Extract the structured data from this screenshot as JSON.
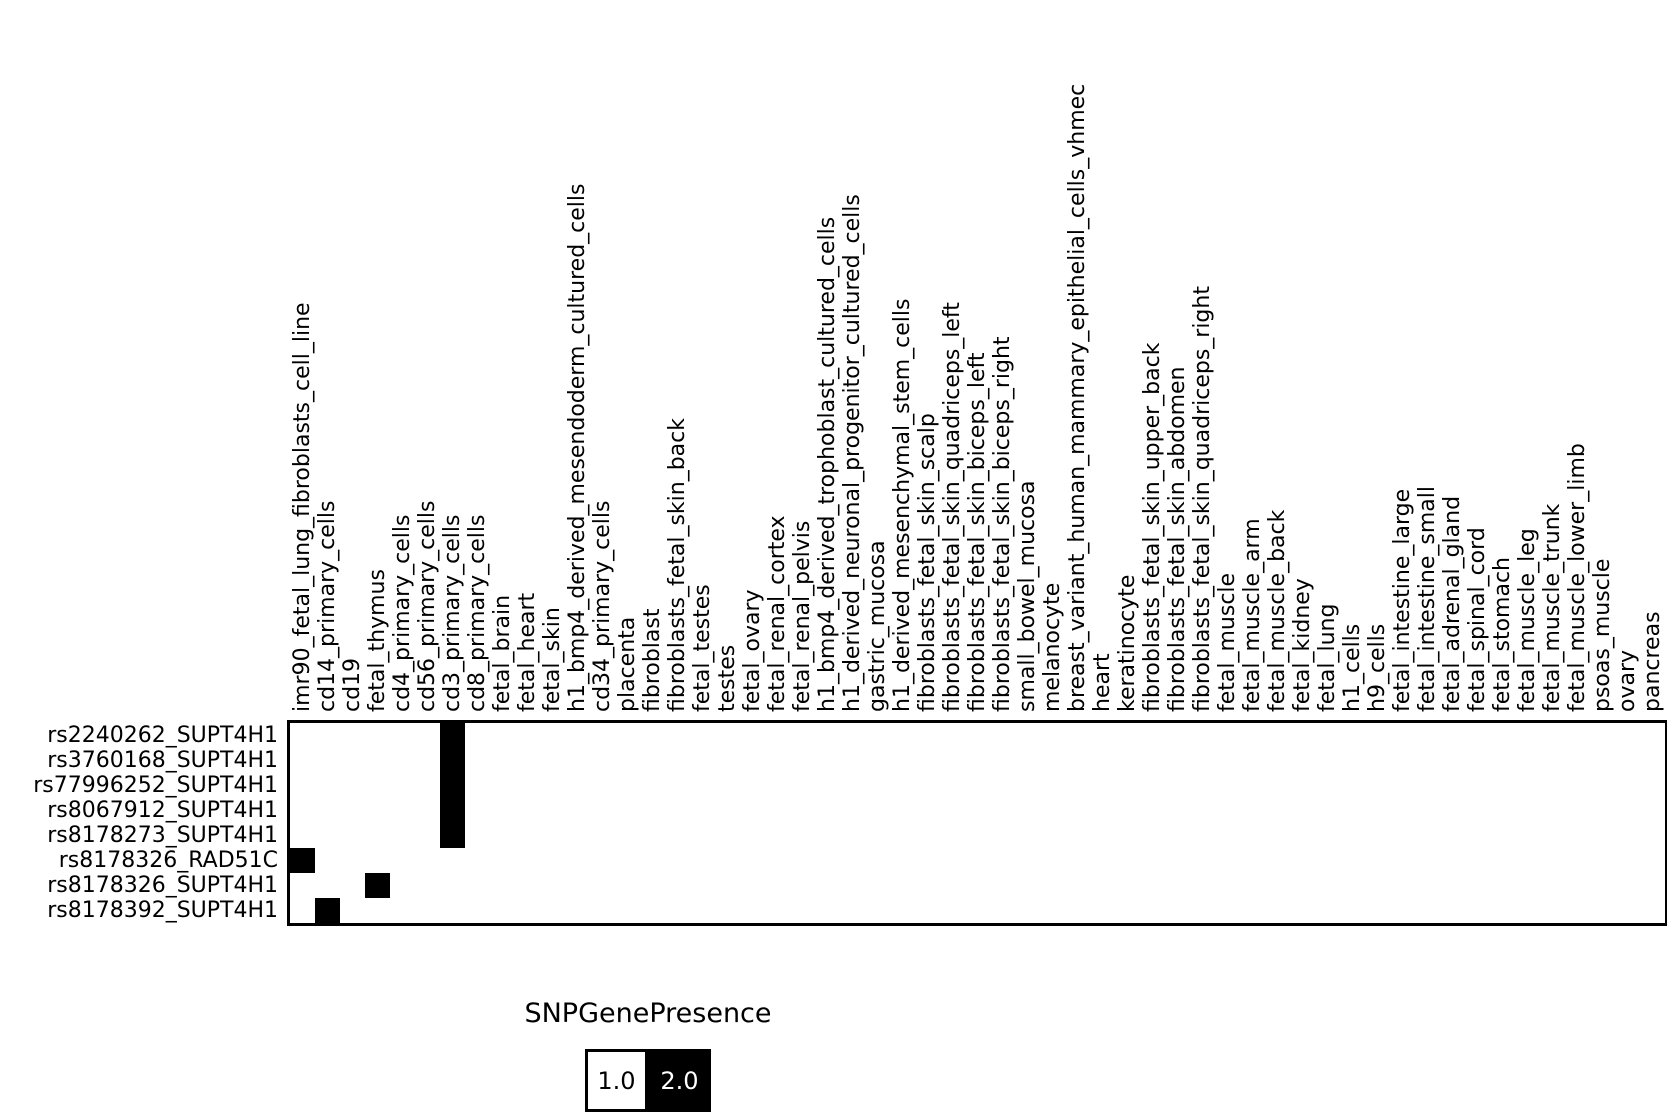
{
  "figure": {
    "background_color": "#ffffff",
    "on_color": "#000000",
    "off_color": "#ffffff",
    "border_color": "#000000"
  },
  "legend": {
    "title": "SNPGenePresence",
    "entries": [
      {
        "label": "1.0",
        "swatch_color": "#ffffff",
        "text_color": "#000000",
        "border_color": "#000000"
      },
      {
        "label": "2.0",
        "swatch_color": "#000000",
        "text_color": "#ffffff",
        "border_color": "#000000"
      }
    ]
  },
  "chart_data": {
    "type": "heatmap",
    "legend_title": "SNPGenePresence",
    "value_range": [
      1.0,
      2.0
    ],
    "default_value": 1.0,
    "colormap": {
      "1.0": "#ffffff",
      "2.0": "#000000"
    },
    "grid": false,
    "legend_position": "bottom-center",
    "rows": [
      "rs2240262_SUPT4H1",
      "rs3760168_SUPT4H1",
      "rs77996252_SUPT4H1",
      "rs8067912_SUPT4H1",
      "rs8178273_SUPT4H1",
      "rs8178326_RAD51C",
      "rs8178326_SUPT4H1",
      "rs8178392_SUPT4H1"
    ],
    "columns": [
      "imr90_fetal_lung_fibroblasts_cell_line",
      "cd14_primary_cells",
      "cd19",
      "fetal_thymus",
      "cd4_primary_cells",
      "cd56_primary_cells",
      "cd3_primary_cells",
      "cd8_primary_cells",
      "fetal_brain",
      "fetal_heart",
      "fetal_skin",
      "h1_bmp4_derived_mesendoderm_cultured_cells",
      "cd34_primary_cells",
      "placenta",
      "fibroblast",
      "fibroblasts_fetal_skin_back",
      "fetal_testes",
      "testes",
      "fetal_ovary",
      "fetal_renal_cortex",
      "fetal_renal_pelvis",
      "h1_bmp4_derived_trophoblast_cultured_cells",
      "h1_derived_neuronal_progenitor_cultured_cells",
      "gastric_mucosa",
      "h1_derived_mesenchymal_stem_cells",
      "fibroblasts_fetal_skin_scalp",
      "fibroblasts_fetal_skin_quadriceps_left",
      "fibroblasts_fetal_skin_biceps_left",
      "fibroblasts_fetal_skin_biceps_right",
      "small_bowel_mucosa",
      "melanocyte",
      "breast_variant_human_mammary_epithelial_cells_vhmec",
      "heart",
      "keratinocyte",
      "fibroblasts_fetal_skin_upper_back",
      "fibroblasts_fetal_skin_abdomen",
      "fibroblasts_fetal_skin_quadriceps_right",
      "fetal_muscle",
      "fetal_muscle_arm",
      "fetal_muscle_back",
      "fetal_kidney",
      "fetal_lung",
      "h1_cells",
      "h9_cells",
      "fetal_intestine_large",
      "fetal_intestine_small",
      "fetal_adrenal_gland",
      "fetal_spinal_cord",
      "fetal_stomach",
      "fetal_muscle_leg",
      "fetal_muscle_trunk",
      "fetal_muscle_lower_limb",
      "psoas_muscle",
      "ovary",
      "pancreas"
    ],
    "cells_with_value_2": [
      {
        "row": "rs2240262_SUPT4H1",
        "column": "cd3_primary_cells"
      },
      {
        "row": "rs3760168_SUPT4H1",
        "column": "cd3_primary_cells"
      },
      {
        "row": "rs77996252_SUPT4H1",
        "column": "cd3_primary_cells"
      },
      {
        "row": "rs8067912_SUPT4H1",
        "column": "cd3_primary_cells"
      },
      {
        "row": "rs8178273_SUPT4H1",
        "column": "cd3_primary_cells"
      },
      {
        "row": "rs8178326_RAD51C",
        "column": "imr90_fetal_lung_fibroblasts_cell_line"
      },
      {
        "row": "rs8178326_SUPT4H1",
        "column": "fetal_thymus"
      },
      {
        "row": "rs8178392_SUPT4H1",
        "column": "cd14_primary_cells"
      }
    ]
  }
}
